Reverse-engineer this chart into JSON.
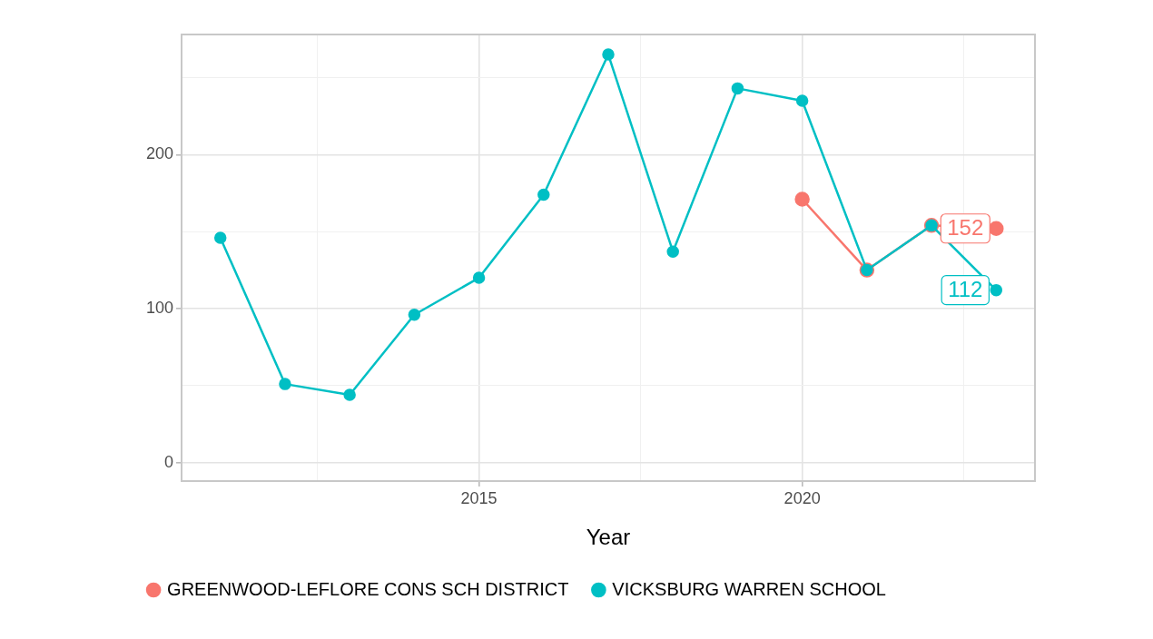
{
  "chart_data": {
    "type": "line",
    "xlabel": "Year",
    "xlim": [
      2010.4,
      2023.6
    ],
    "ylim": [
      -12,
      278
    ],
    "xticks": [
      {
        "value": 2012.5,
        "label": null
      },
      2015,
      {
        "value": 2017.5,
        "label": null
      },
      2020,
      {
        "value": 2022.5,
        "label": null
      }
    ],
    "yticks": [
      0,
      {
        "value": 50,
        "label": null
      },
      100,
      {
        "value": 150,
        "label": null
      },
      200,
      {
        "value": 250,
        "label": null
      }
    ],
    "grid": true,
    "legend": "bottom",
    "marker": "circle",
    "line_style": "solid",
    "series": [
      {
        "name": "GREENWOOD-LEFLORE CONS SCH DISTRICT",
        "color": "#f8766d",
        "x": [
          2020,
          2021,
          2022,
          2023
        ],
        "values": [
          171,
          125,
          154,
          152
        ],
        "value_labels": [
          null,
          null,
          null,
          "152"
        ]
      },
      {
        "name": "VICKSBURG WARREN SCHOOL",
        "color": "#00bfc4",
        "x": [
          2011,
          2012,
          2013,
          2014,
          2015,
          2016,
          2017,
          2018,
          2019,
          2020,
          2021,
          2022,
          2023
        ],
        "values": [
          146,
          51,
          44,
          96,
          120,
          174,
          265,
          137,
          243,
          235,
          125,
          154,
          112
        ],
        "value_labels": [
          null,
          null,
          null,
          null,
          null,
          null,
          null,
          null,
          null,
          null,
          null,
          null,
          "112"
        ]
      }
    ]
  }
}
